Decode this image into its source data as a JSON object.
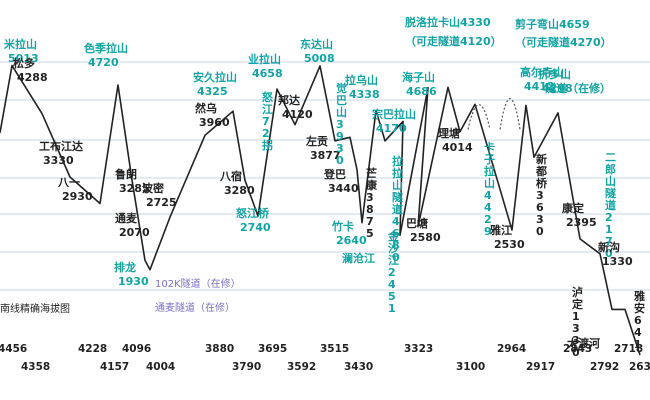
{
  "chart_data": {
    "type": "line",
    "title": "南线精确海拔图",
    "colors": {
      "line": "#222222",
      "grid": "#b7c9d9",
      "label_black": "#222222",
      "label_teal": "#14a3a3",
      "label_purple": "#7b6fc1"
    },
    "grid": true,
    "ylim": [
      1200,
      5400
    ],
    "points": [
      {
        "alt": 4000,
        "name": "",
        "value": "",
        "color": "black"
      },
      {
        "alt": 5013,
        "name": "米拉山",
        "value": "5013",
        "color": "teal"
      },
      {
        "alt": 4288,
        "name": "松多",
        "value": "4288",
        "color": "black"
      },
      {
        "alt": 3330,
        "name": "工布江达",
        "value": "3330",
        "color": "black"
      },
      {
        "alt": 2930,
        "name": "八一",
        "value": "2930",
        "color": "black"
      },
      {
        "alt": 4720,
        "name": "色季拉山",
        "value": "4720",
        "color": "teal"
      },
      {
        "alt": 3285,
        "name": "鲁朗",
        "value": "3285",
        "color": "black"
      },
      {
        "alt": 2070,
        "name": "通麦",
        "value": "2070",
        "color": "black"
      },
      {
        "alt": 1930,
        "name": "排龙",
        "value": "1930",
        "color": "teal"
      },
      {
        "alt": 2725,
        "name": "波密",
        "value": "2725",
        "color": "black"
      },
      {
        "alt": 3960,
        "name": "然乌",
        "value": "3960",
        "color": "black"
      },
      {
        "alt": 4325,
        "name": "安久拉山",
        "value": "4325",
        "color": "teal"
      },
      {
        "alt": 3280,
        "name": "八宿",
        "value": "3280",
        "color": "black"
      },
      {
        "alt": 2740,
        "name": "怒江桥",
        "value": "2740",
        "color": "teal"
      },
      {
        "alt": 4658,
        "name": "业拉山",
        "value": "4658",
        "color": "teal"
      },
      {
        "alt": 4120,
        "name": "邦达",
        "value": "4120",
        "color": "black"
      },
      {
        "alt": 5008,
        "name": "东达山",
        "value": "5008",
        "color": "teal"
      },
      {
        "alt": 3877,
        "name": "左贡",
        "value": "3877",
        "color": "black"
      },
      {
        "alt": 3930,
        "name": "觉巴山",
        "value": "3930",
        "color": "teal"
      },
      {
        "alt": 3440,
        "name": "登巴",
        "value": "3440",
        "color": "black"
      },
      {
        "alt": 2640,
        "name": "竹卡",
        "value": "2640",
        "color": "teal"
      },
      {
        "alt": 4338,
        "name": "拉乌山",
        "value": "4338",
        "color": "teal"
      },
      {
        "alt": 3875,
        "name": "芒康",
        "value": "3875",
        "color": "black"
      },
      {
        "alt": 4170,
        "name": "宗巴拉山",
        "value": "4170",
        "color": "teal"
      },
      {
        "alt": 2451,
        "name": "金沙江",
        "value": "2451",
        "color": "teal"
      },
      {
        "alt": 4680,
        "name": "拉拉山隧道",
        "value": "4680",
        "color": "teal"
      },
      {
        "alt": 2580,
        "name": "巴塘",
        "value": "2580",
        "color": "black"
      },
      {
        "alt": 4686,
        "name": "海子山",
        "value": "4686",
        "color": "teal"
      },
      {
        "alt": 4014,
        "name": "理塘",
        "value": "4014",
        "color": "black"
      },
      {
        "alt": 4429,
        "name": "卡子拉山",
        "value": "4429",
        "color": "teal"
      },
      {
        "alt": 2530,
        "name": "雅江",
        "value": "2530",
        "color": "black"
      },
      {
        "alt": 4412,
        "name": "高尔寺山",
        "value": "4412",
        "color": "teal"
      },
      {
        "alt": 3630,
        "name": "新都桥",
        "value": "3630",
        "color": "black"
      },
      {
        "alt": 4298,
        "name": "折多山",
        "value": "4298",
        "color": "teal"
      },
      {
        "alt": 2395,
        "name": "康定",
        "value": "2395",
        "color": "black"
      },
      {
        "alt": 2170,
        "name": "二郎山隧道",
        "value": "2170",
        "color": "teal"
      },
      {
        "alt": 1330,
        "name": "泸定",
        "value": "1330",
        "color": "black"
      },
      {
        "alt": 1330,
        "name": "新沟",
        "value": "1330",
        "color": "black"
      },
      {
        "alt": 641,
        "name": "雅安",
        "value": "641",
        "color": "black"
      }
    ],
    "annotations": [
      {
        "text": "102K隧道（在修）",
        "color": "purple"
      },
      {
        "text": "通麦隧道（在修）",
        "color": "purple"
      },
      {
        "text": "怒江72拐",
        "color": "teal"
      },
      {
        "text": "澜沧江",
        "color": "teal"
      },
      {
        "text": "脱洛拉卡山4330",
        "color": "teal"
      },
      {
        "text": "（可走隧道4120）",
        "color": "teal"
      },
      {
        "text": "剪子弯山4659",
        "color": "teal"
      },
      {
        "text": "（可走隧道4270）",
        "color": "teal"
      },
      {
        "text": "高尔寺山4412",
        "color": "teal"
      },
      {
        "text": "隧道（在修）",
        "color": "teal"
      },
      {
        "text": "大渡河",
        "color": "black"
      }
    ],
    "axis_ticks": [
      "4456",
      "4358",
      "4228",
      "4157",
      "4096",
      "4004",
      "3880",
      "3790",
      "3695",
      "3592",
      "3515",
      "3430",
      "3323",
      "3100",
      "2964",
      "2917",
      "2843",
      "2792",
      "2718",
      "2631"
    ]
  }
}
